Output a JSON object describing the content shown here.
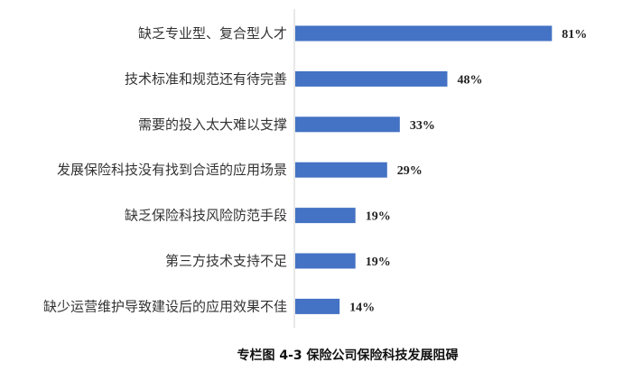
{
  "chart_data": {
    "type": "bar",
    "orientation": "horizontal",
    "title": "专栏图 4-3  保险公司保险科技发展阻碍",
    "categories": [
      "缺乏专业型、复合型人才",
      "技术标准和规范还有待完善",
      "需要的投入太大难以支撑",
      "发展保险科技没有找到合适的应用场景",
      "缺乏保险科技风险防范手段",
      "第三方技术支持不足",
      "缺少运营维护导致建设后的应用效果不佳"
    ],
    "values": [
      81,
      48,
      33,
      29,
      19,
      19,
      14
    ],
    "data_labels": [
      "81%",
      "48%",
      "33%",
      "29%",
      "19%",
      "19%",
      "14%"
    ],
    "xlabel": "",
    "ylabel": "",
    "xlim": [
      0,
      85
    ],
    "grid": false,
    "bar_color": "#4472C4",
    "axis_color": "#d0d0d0"
  }
}
